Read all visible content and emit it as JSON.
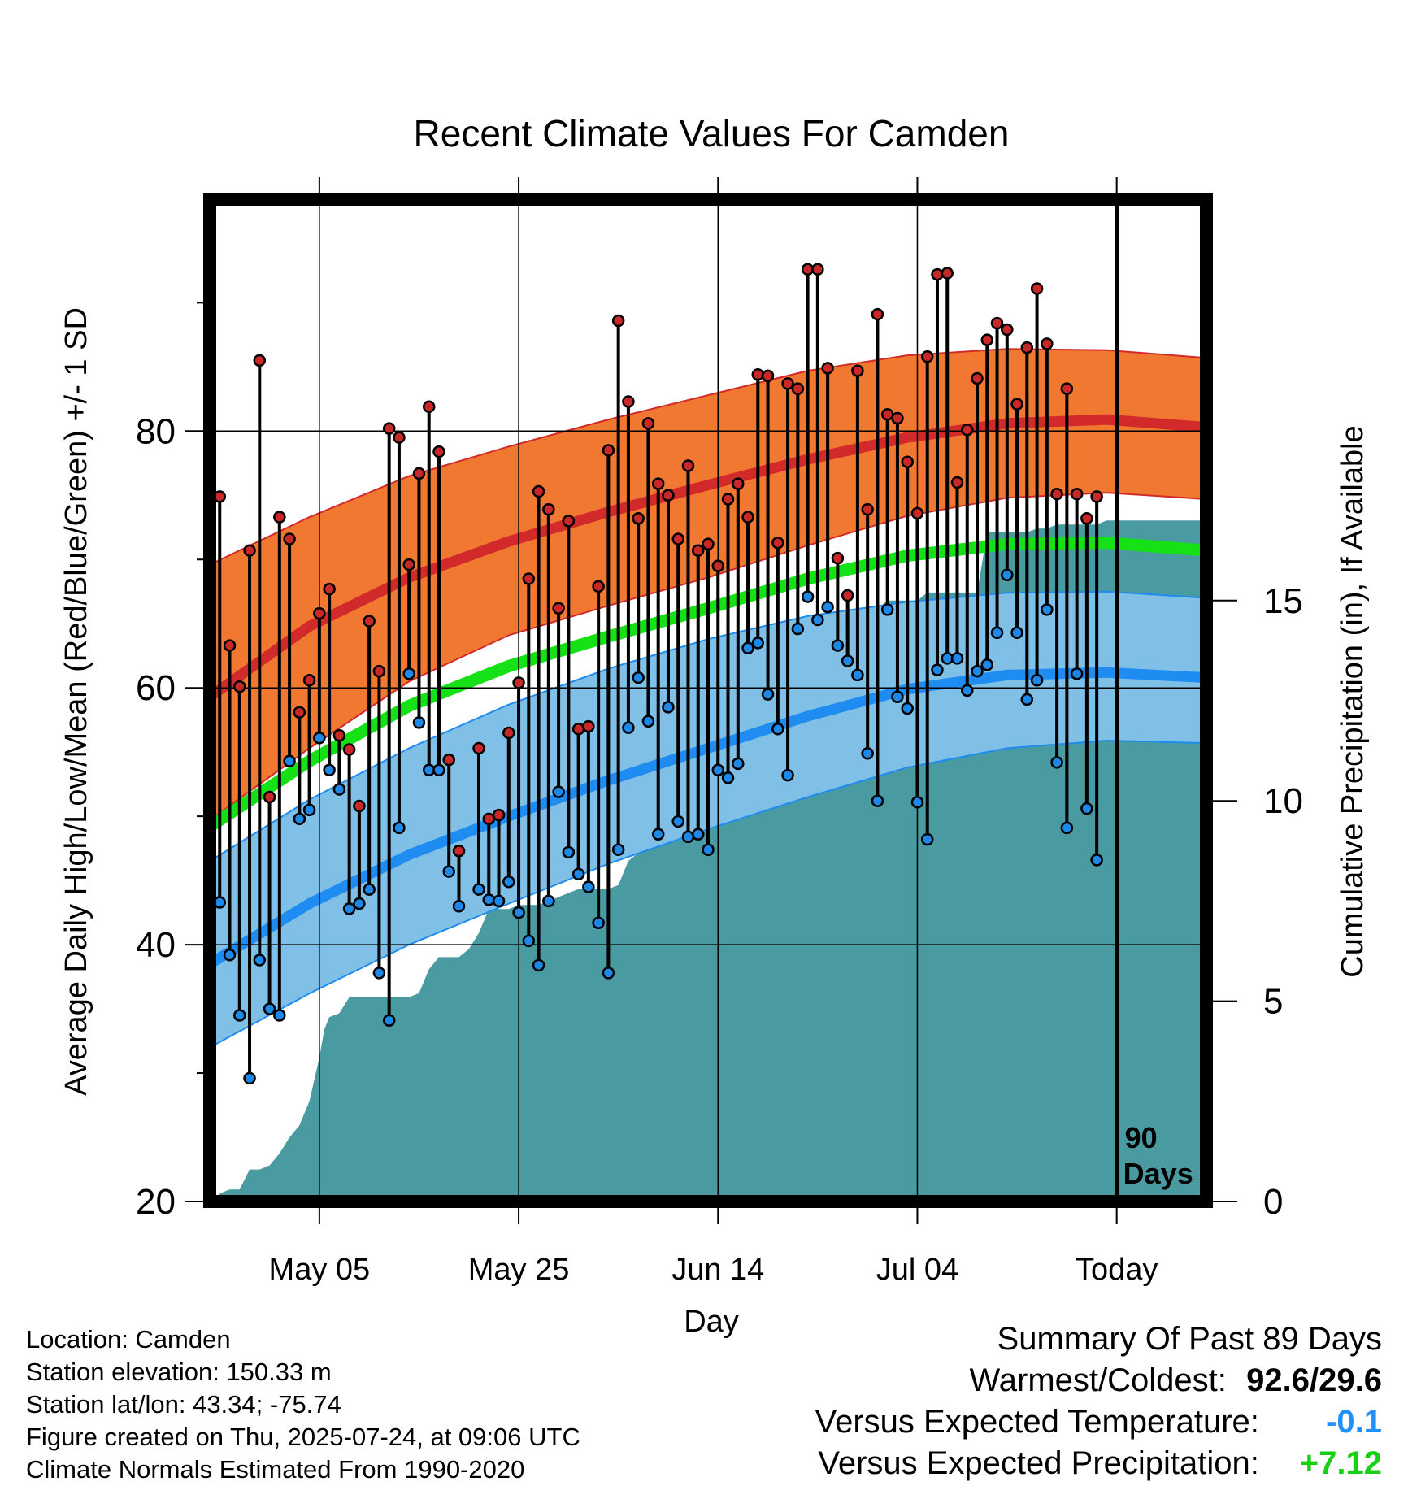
{
  "chart_data": {
    "type": "line",
    "title": "Recent Climate Values For Camden",
    "xlabel": "Day",
    "ylabel": "Average Daily High/Low/Mean (Red/Blue/Green) +/- 1 SD",
    "y2label": "Cumulative Precipitation (in), If Available",
    "ylim": [
      20,
      98
    ],
    "y2lim": [
      0,
      25
    ],
    "yticks": [
      20,
      40,
      60,
      80
    ],
    "y2ticks": [
      0,
      5,
      10,
      15
    ],
    "x_range_days": [
      0,
      100
    ],
    "x_ticks": [
      {
        "day": 11,
        "label": "May 05"
      },
      {
        "day": 31,
        "label": "May 25"
      },
      {
        "day": 51,
        "label": "Jun 14"
      },
      {
        "day": 71,
        "label": "Jul 04"
      },
      {
        "day": 91,
        "label": "Today"
      }
    ],
    "today_marker": {
      "day": 91,
      "label_line1": "90",
      "label_line2": "Days"
    },
    "colors": {
      "high_band": "#f07830",
      "high_mean": "#d22a2a",
      "low_band": "#80c0e6",
      "low_mean": "#1e8cf0",
      "mean": "#16e016",
      "precip": "#4a9aa2",
      "high_point": "#c82828",
      "low_point": "#1e88e8"
    },
    "normals": {
      "days": [
        0,
        10,
        20,
        30,
        40,
        50,
        60,
        70,
        80,
        90,
        100
      ],
      "high_mean": [
        59.3,
        64.8,
        68.6,
        71.4,
        73.7,
        75.8,
        77.8,
        79.5,
        80.6,
        80.9,
        80.3
      ],
      "high_plus": [
        69.6,
        73.3,
        76.5,
        78.8,
        80.9,
        82.8,
        84.7,
        85.9,
        86.4,
        86.3,
        85.7
      ],
      "high_minus": [
        49.7,
        55.3,
        60.5,
        64.1,
        66.4,
        68.6,
        71.1,
        73.4,
        74.8,
        75.2,
        74.7
      ],
      "mean": [
        49.2,
        54.3,
        58.6,
        61.7,
        64.0,
        66.2,
        68.5,
        70.3,
        71.2,
        71.3,
        70.7
      ],
      "low_mean": [
        38.5,
        43.2,
        47.0,
        50.0,
        52.8,
        55.3,
        57.8,
        59.9,
        61.0,
        61.2,
        60.8
      ],
      "low_plus": [
        46.5,
        51.3,
        55.3,
        58.7,
        61.5,
        63.8,
        65.6,
        66.7,
        67.4,
        67.5,
        67.0
      ],
      "low_minus": [
        32.0,
        36.2,
        40.0,
        43.2,
        46.3,
        49.0,
        51.5,
        53.8,
        55.3,
        55.9,
        55.7
      ]
    },
    "daily": {
      "day": [
        1,
        2,
        3,
        4,
        5,
        6,
        7,
        8,
        9,
        10,
        11,
        12,
        13,
        14,
        15,
        16,
        17,
        18,
        19,
        20,
        21,
        22,
        23,
        24,
        25,
        26,
        27,
        28,
        29,
        30,
        31,
        32,
        33,
        34,
        35,
        36,
        37,
        38,
        39,
        40,
        41,
        42,
        43,
        44,
        45,
        46,
        47,
        48,
        49,
        50,
        51,
        52,
        53,
        54,
        55,
        56,
        57,
        58,
        59,
        60,
        61,
        62,
        63,
        64,
        65,
        66,
        67,
        68,
        69,
        70,
        71,
        72,
        73,
        74,
        75,
        76,
        77,
        78,
        79,
        80,
        81,
        82,
        83,
        84,
        85,
        86,
        87,
        88,
        89
      ],
      "high": [
        74.9,
        63.3,
        60.1,
        70.7,
        85.5,
        51.5,
        73.3,
        71.6,
        58.1,
        60.6,
        65.8,
        67.7,
        56.3,
        55.2,
        50.8,
        65.2,
        61.3,
        80.2,
        79.5,
        69.6,
        76.7,
        81.9,
        78.4,
        54.4,
        47.3,
        null,
        55.3,
        49.8,
        50.1,
        56.5,
        60.4,
        68.5,
        75.3,
        73.9,
        66.2,
        73.0,
        56.8,
        57.0,
        67.9,
        78.5,
        88.6,
        82.3,
        73.2,
        80.6,
        75.9,
        75.0,
        71.6,
        77.3,
        70.7,
        71.2,
        69.5,
        74.7,
        75.9,
        73.3,
        84.4,
        84.3,
        71.3,
        83.7,
        83.3,
        92.6,
        92.6,
        84.9,
        70.1,
        67.2,
        84.7,
        73.9,
        89.1,
        81.3,
        81.0,
        77.6,
        73.6,
        85.8,
        92.2,
        92.3,
        76.0,
        80.1,
        84.1,
        87.1,
        88.4,
        87.9,
        82.1,
        86.5,
        91.1,
        86.8,
        75.1,
        83.3,
        75.1,
        73.2,
        74.9
      ],
      "low": [
        43.3,
        39.2,
        34.5,
        29.6,
        38.8,
        35.0,
        34.5,
        54.3,
        49.8,
        50.5,
        56.1,
        53.6,
        52.1,
        42.8,
        43.2,
        44.3,
        37.8,
        34.1,
        49.1,
        61.1,
        57.3,
        53.6,
        53.6,
        45.7,
        43.0,
        null,
        44.3,
        43.5,
        43.4,
        44.9,
        42.5,
        40.3,
        38.4,
        43.4,
        51.9,
        47.2,
        45.5,
        44.5,
        41.7,
        37.8,
        47.4,
        56.9,
        60.8,
        57.4,
        48.6,
        58.5,
        49.6,
        48.4,
        48.6,
        47.4,
        53.6,
        53.0,
        54.1,
        63.1,
        63.5,
        59.5,
        56.8,
        53.2,
        64.6,
        67.1,
        65.3,
        66.3,
        63.3,
        62.1,
        61.0,
        54.9,
        51.2,
        66.1,
        59.3,
        58.4,
        51.1,
        48.2,
        61.4,
        62.3,
        62.3,
        59.8,
        61.3,
        61.8,
        64.3,
        68.8,
        64.3,
        59.1,
        60.6,
        66.1,
        54.2,
        49.1,
        61.1,
        50.6,
        46.6
      ]
    },
    "precip": {
      "days": [
        1,
        2,
        3,
        4,
        5,
        6,
        7,
        8,
        9,
        10,
        11,
        11.5,
        12,
        13,
        14,
        15,
        16,
        17,
        18,
        19,
        20,
        21,
        22,
        23,
        24,
        25,
        26,
        27,
        28,
        29,
        30,
        31,
        32,
        33,
        34,
        35,
        36,
        37,
        38,
        39,
        40,
        41,
        42,
        43,
        44,
        45,
        46,
        47,
        48,
        49,
        50,
        51,
        52,
        53,
        54,
        55,
        56,
        57,
        58,
        59,
        60,
        61,
        62,
        63,
        64,
        65,
        66,
        67,
        68,
        69,
        70,
        71,
        72,
        73,
        74,
        75,
        76,
        77,
        78,
        79,
        80,
        81,
        82,
        83,
        84,
        85,
        86,
        87,
        88,
        89,
        90,
        91,
        92,
        93,
        94,
        95,
        96,
        97,
        98,
        99,
        100
      ],
      "values": [
        0.2,
        0.3,
        0.3,
        0.8,
        0.8,
        0.9,
        1.2,
        1.6,
        1.9,
        2.5,
        3.6,
        4.3,
        4.6,
        4.7,
        5.1,
        5.1,
        5.1,
        5.1,
        5.1,
        5.1,
        5.1,
        5.2,
        5.8,
        6.1,
        6.1,
        6.1,
        6.3,
        6.7,
        7.3,
        7.3,
        7.3,
        7.4,
        7.4,
        7.4,
        7.5,
        7.6,
        7.7,
        7.8,
        7.8,
        7.8,
        7.8,
        7.9,
        8.5,
        8.7,
        10.9,
        11.2,
        11.2,
        11.2,
        11.2,
        11.2,
        11.2,
        11.2,
        11.2,
        11.2,
        11.2,
        11.3,
        11.3,
        11.3,
        14.5,
        14.5,
        14.5,
        14.5,
        14.5,
        14.5,
        14.5,
        14.8,
        14.8,
        14.8,
        15.0,
        15.0,
        15.0,
        15.0,
        15.2,
        15.2,
        15.2,
        15.2,
        15.2,
        15.2,
        16.7,
        16.7,
        16.7,
        16.7,
        16.7,
        16.8,
        16.8,
        16.9,
        16.9,
        16.9,
        16.9,
        16.9,
        17.0,
        17.0,
        17.0,
        17.0,
        17.0,
        17.0,
        17.0,
        17.0,
        17.0,
        17.0,
        17.0
      ]
    }
  },
  "footer": {
    "location": "Location: Camden",
    "elevation": "Station elevation: 150.33 m",
    "latlon": "Station lat/lon: 43.34; -75.74",
    "created": "Figure created on Thu, 2025-07-24, at 09:06 UTC",
    "normals": "Climate Normals Estimated From 1990-2020"
  },
  "summary": {
    "title": "Summary Of Past 89 Days",
    "warm_cold_label": "Warmest/Coldest:",
    "warm_cold_value": "92.6/29.6",
    "temp_label": "Versus Expected Temperature:",
    "temp_value": "-0.1",
    "temp_color": "#1e90ff",
    "precip_label": "Versus Expected Precipitation:",
    "precip_value": "+7.12",
    "precip_color": "#16d016"
  }
}
